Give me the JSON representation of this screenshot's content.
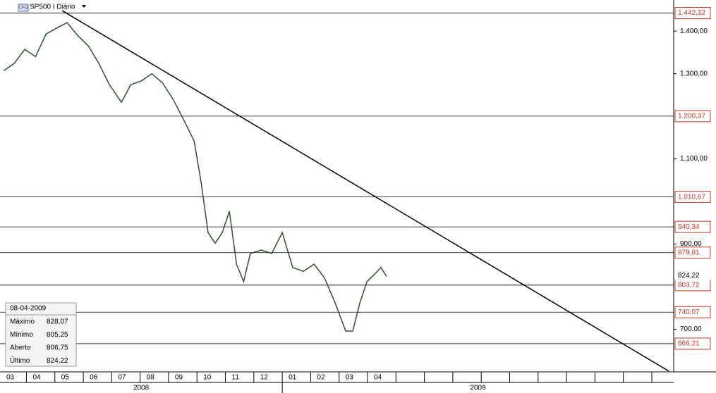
{
  "chart_data": {
    "type": "line",
    "title": "SP500 I Diário",
    "badge": "CFD",
    "x": [
      0.2,
      0.57,
      0.94,
      1.32,
      1.69,
      2.06,
      2.43,
      2.8,
      3.18,
      3.55,
      3.92,
      4.34,
      4.67,
      5.04,
      5.41,
      5.78,
      6.15,
      6.53,
      6.9,
      7.15,
      7.39,
      7.64,
      7.89,
      8.14,
      8.39,
      8.64,
      8.88,
      9.26,
      9.63,
      10.0,
      10.37,
      10.74,
      11.12,
      11.49,
      11.86,
      12.23,
      12.48,
      12.73,
      12.98,
      13.23,
      13.47,
      13.67
    ],
    "series": [
      {
        "name": "SP500",
        "color": "#2f4f2f",
        "values": [
          1307,
          1324,
          1357,
          1340,
          1393,
          1407,
          1420,
          1390,
          1365,
          1324,
          1274,
          1233,
          1274,
          1283,
          1300,
          1279,
          1241,
          1192,
          1142,
          1043,
          927,
          902,
          927,
          977,
          853,
          812,
          878,
          886,
          878,
          927,
          845,
          836,
          853,
          820,
          762,
          696,
          696,
          762,
          812,
          828,
          845,
          824
        ]
      }
    ],
    "xlim": [
      0.07,
      23.77
    ],
    "ylim": [
      600,
      1473
    ],
    "xticks": [
      {
        "value": 0,
        "label": "03"
      },
      {
        "value": 1,
        "label": "04"
      },
      {
        "value": 2,
        "label": "05"
      },
      {
        "value": 3,
        "label": "06"
      },
      {
        "value": 4,
        "label": "07"
      },
      {
        "value": 5,
        "label": "08"
      },
      {
        "value": 6,
        "label": "09"
      },
      {
        "value": 7,
        "label": "10"
      },
      {
        "value": 8,
        "label": "11"
      },
      {
        "value": 9,
        "label": "12"
      },
      {
        "value": 10,
        "label": "01"
      },
      {
        "value": 11,
        "label": "02"
      },
      {
        "value": 12,
        "label": "03"
      },
      {
        "value": 13,
        "label": "04"
      },
      {
        "value": 14,
        "label": null
      },
      {
        "value": 15,
        "label": null
      },
      {
        "value": 16,
        "label": null
      },
      {
        "value": 17,
        "label": null
      },
      {
        "value": 18,
        "label": null
      },
      {
        "value": 19,
        "label": null
      },
      {
        "value": 20,
        "label": null
      },
      {
        "value": 21,
        "label": null
      },
      {
        "value": 22,
        "label": null
      },
      {
        "value": 23,
        "label": null
      }
    ],
    "years": [
      "2008",
      "2009"
    ],
    "yticks": [
      {
        "value": 1400,
        "label": "1.400,00"
      },
      {
        "value": 1300,
        "label": "1.300,00"
      },
      {
        "value": 1100,
        "label": "1.100,00"
      },
      {
        "value": 900,
        "label": "900,00"
      },
      {
        "value": 700,
        "label": "700,00"
      }
    ],
    "levels": [
      {
        "value": 1442.32,
        "label": "1.442,32"
      },
      {
        "value": 1200.37,
        "label": "1.200,37"
      },
      {
        "value": 1010.67,
        "label": "1.010,67"
      },
      {
        "value": 940.34,
        "label": "940,34"
      },
      {
        "value": 879.81,
        "label": "879,81"
      },
      {
        "value": 803.72,
        "label": "803,72"
      },
      {
        "value": 740.07,
        "label": "740,07"
      },
      {
        "value": 666.21,
        "label": "666,21"
      }
    ],
    "level_color": "#c0392b",
    "last_price": {
      "value": 824.22,
      "label": "824,22"
    },
    "trendline": {
      "x": [
        2.26,
        23.6
      ],
      "values": [
        1447.9,
        601.7
      ]
    },
    "info_box": {
      "date": "08-04-2009",
      "rows": [
        [
          "Máximo",
          "828,07"
        ],
        [
          "Mínimo",
          "805,25"
        ],
        [
          "Aberto",
          "806,75"
        ],
        [
          "Último",
          "824,22"
        ]
      ]
    }
  }
}
